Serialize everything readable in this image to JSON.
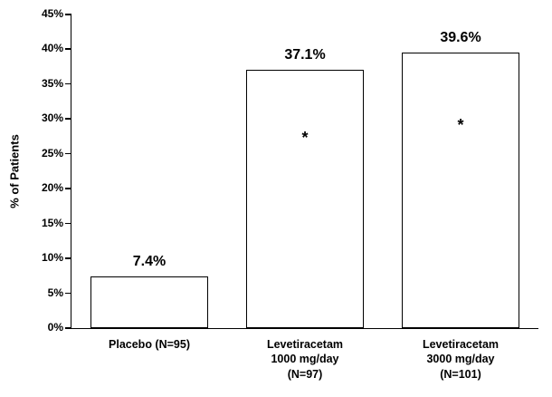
{
  "chart_data": {
    "type": "bar",
    "title": "",
    "xlabel": "",
    "ylabel": "% of Patients",
    "ylim": [
      0,
      45
    ],
    "yticks": [
      0,
      5,
      10,
      15,
      20,
      25,
      30,
      35,
      40,
      45
    ],
    "ytick_suffix": "%",
    "categories": [
      "Placebo (N=95)",
      "Levetiracetam\n1000 mg/day\n(N=97)",
      "Levetiracetam\n3000 mg/day\n(N=101)"
    ],
    "values": [
      7.4,
      37.1,
      39.6
    ],
    "value_labels": [
      "7.4%",
      "37.1%",
      "39.6%"
    ],
    "significance_marks": [
      "",
      "*",
      "*"
    ],
    "grid": false,
    "legend": null,
    "bar_fill_color": "#ffffff",
    "bar_border_color": "#000000",
    "axis_color": "#000000",
    "text_color": "#000000",
    "background_color": "#ffffff"
  }
}
